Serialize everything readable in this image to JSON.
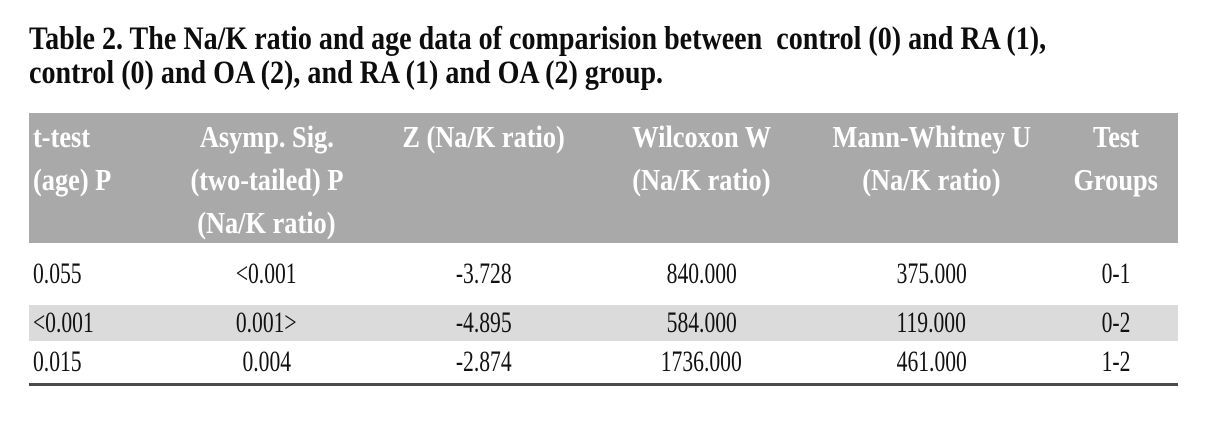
{
  "caption": {
    "line1": "Table 2. The Na/K ratio and age data of comparision between  control (0) and RA (1),",
    "line2": "control (0) and OA (2), and RA (1) and OA (2) group."
  },
  "table": {
    "columns": [
      {
        "label_lines": [
          "t-test",
          "(age) P"
        ]
      },
      {
        "label_lines": [
          "Asymp. Sig.",
          "(two-tailed) P",
          "(Na/K ratio)"
        ]
      },
      {
        "label_lines": [
          "Z (Na/K ratio)"
        ]
      },
      {
        "label_lines": [
          "Wilcoxon W",
          "(Na/K ratio)"
        ]
      },
      {
        "label_lines": [
          "Mann-Whitney U",
          "(Na/K ratio)"
        ]
      },
      {
        "label_lines": [
          "Test",
          "Groups"
        ]
      }
    ],
    "rows": [
      {
        "cells": [
          "0.055",
          "<0.001",
          "-3.728",
          "840.000",
          "375.000",
          "0-1"
        ],
        "shaded": false
      },
      {
        "cells": [
          "<0.001",
          "0.001>",
          "-4.895",
          "584.000",
          "119.000",
          "0-2"
        ],
        "shaded": true
      },
      {
        "cells": [
          "0.015",
          "0.004",
          "-2.874",
          "1736.000",
          "461.000",
          "1-2"
        ],
        "shaded": false
      }
    ]
  },
  "colors": {
    "header_bg": "#a9a9a9",
    "header_text": "#ffffff",
    "shaded_row_bg": "#dbdbdb",
    "bottom_rule": "#4a4a4a",
    "text": "#111111"
  }
}
